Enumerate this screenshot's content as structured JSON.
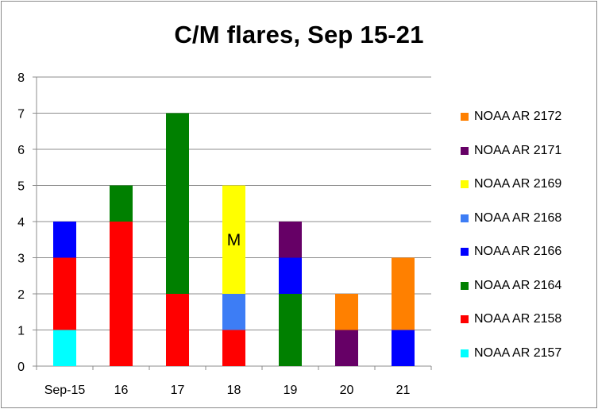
{
  "chart_data": {
    "type": "bar",
    "stacked": true,
    "title": "C/M flares, Sep 15-21",
    "xlabel": "",
    "ylabel": "",
    "categories": [
      "Sep-15",
      "16",
      "17",
      "18",
      "19",
      "20",
      "21"
    ],
    "ylim": [
      0,
      8
    ],
    "yticks": [
      0,
      1,
      2,
      3,
      4,
      5,
      6,
      7,
      8
    ],
    "grid": true,
    "legend_position": "right",
    "series": [
      {
        "name": "NOAA AR 2157",
        "color": "#00ffff",
        "values": [
          1,
          0,
          0,
          0,
          0,
          0,
          0
        ]
      },
      {
        "name": "NOAA AR 2158",
        "color": "#ff0000",
        "values": [
          2,
          4,
          2,
          1,
          0,
          0,
          0
        ]
      },
      {
        "name": "NOAA AR 2164",
        "color": "#008000",
        "values": [
          0,
          1,
          5,
          0,
          2,
          0,
          0
        ]
      },
      {
        "name": "NOAA AR 2166",
        "color": "#0000ff",
        "values": [
          1,
          0,
          0,
          0,
          1,
          0,
          1
        ]
      },
      {
        "name": "NOAA AR 2168",
        "color": "#3d7df5",
        "values": [
          0,
          0,
          0,
          1,
          0,
          0,
          0
        ]
      },
      {
        "name": "NOAA AR 2169",
        "color": "#ffff00",
        "values": [
          0,
          0,
          0,
          3,
          0,
          0,
          0
        ]
      },
      {
        "name": "NOAA AR 2171",
        "color": "#660066",
        "values": [
          0,
          0,
          0,
          0,
          1,
          1,
          0
        ]
      },
      {
        "name": "NOAA AR 2172",
        "color": "#ff8000",
        "values": [
          0,
          0,
          0,
          0,
          0,
          1,
          2
        ]
      }
    ],
    "annotations": [
      {
        "text": "M",
        "category": "18",
        "series": "NOAA AR 2169"
      }
    ]
  }
}
